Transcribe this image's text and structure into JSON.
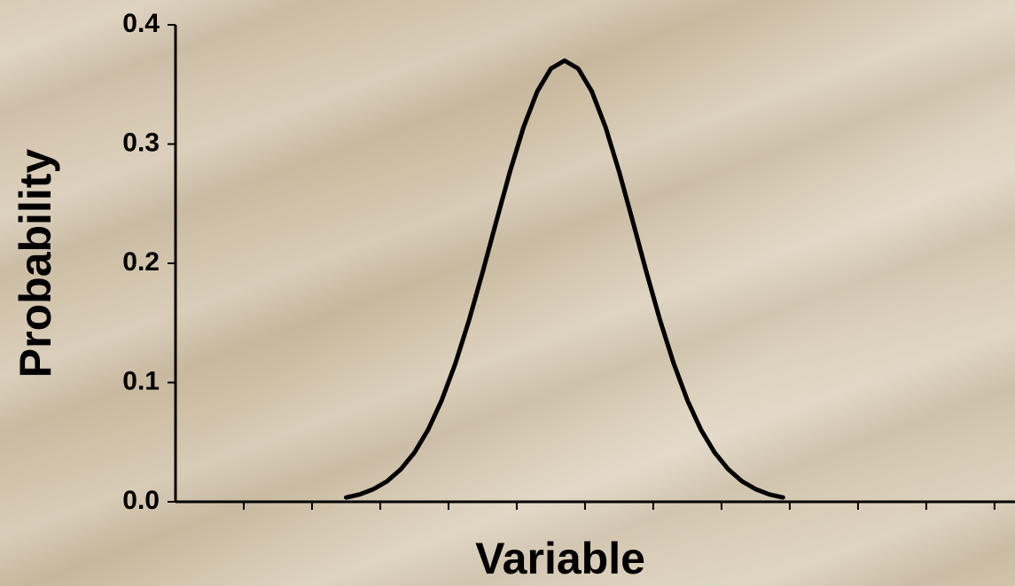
{
  "chart_data": {
    "type": "line",
    "x_label": "Variable",
    "y_label": "Probability",
    "xlim": [
      0,
      12.3
    ],
    "xticks": [
      1,
      2,
      3,
      4,
      5,
      6,
      7,
      8,
      9,
      10,
      11,
      12
    ],
    "ylim": [
      0,
      0.4
    ],
    "yticks": [
      {
        "value": 0,
        "label": "0.0"
      },
      0.1,
      0.2,
      0.3,
      0.4
    ],
    "grid": false,
    "series": [
      {
        "color": "#000000",
        "x": [
          2.5,
          2.7,
          2.9,
          3.1,
          3.3,
          3.5,
          3.7,
          3.9,
          4.1,
          4.3,
          4.5,
          4.7,
          4.9,
          5.1,
          5.3,
          5.5,
          5.7,
          5.9,
          6.1,
          6.3,
          6.5,
          6.7,
          6.9,
          7.1,
          7.3,
          7.5,
          7.7,
          7.9,
          8.1,
          8.3,
          8.5,
          8.7,
          8.9
        ],
        "values": [
          0.0036,
          0.0062,
          0.0106,
          0.0172,
          0.0272,
          0.0412,
          0.0603,
          0.0851,
          0.1159,
          0.1521,
          0.1926,
          0.2351,
          0.2768,
          0.3143,
          0.3441,
          0.3633,
          0.37,
          0.3633,
          0.3441,
          0.3143,
          0.2768,
          0.2351,
          0.1926,
          0.1521,
          0.1159,
          0.0851,
          0.0603,
          0.0412,
          0.0272,
          0.0172,
          0.0106,
          0.0062,
          0.0036
        ]
      }
    ]
  }
}
